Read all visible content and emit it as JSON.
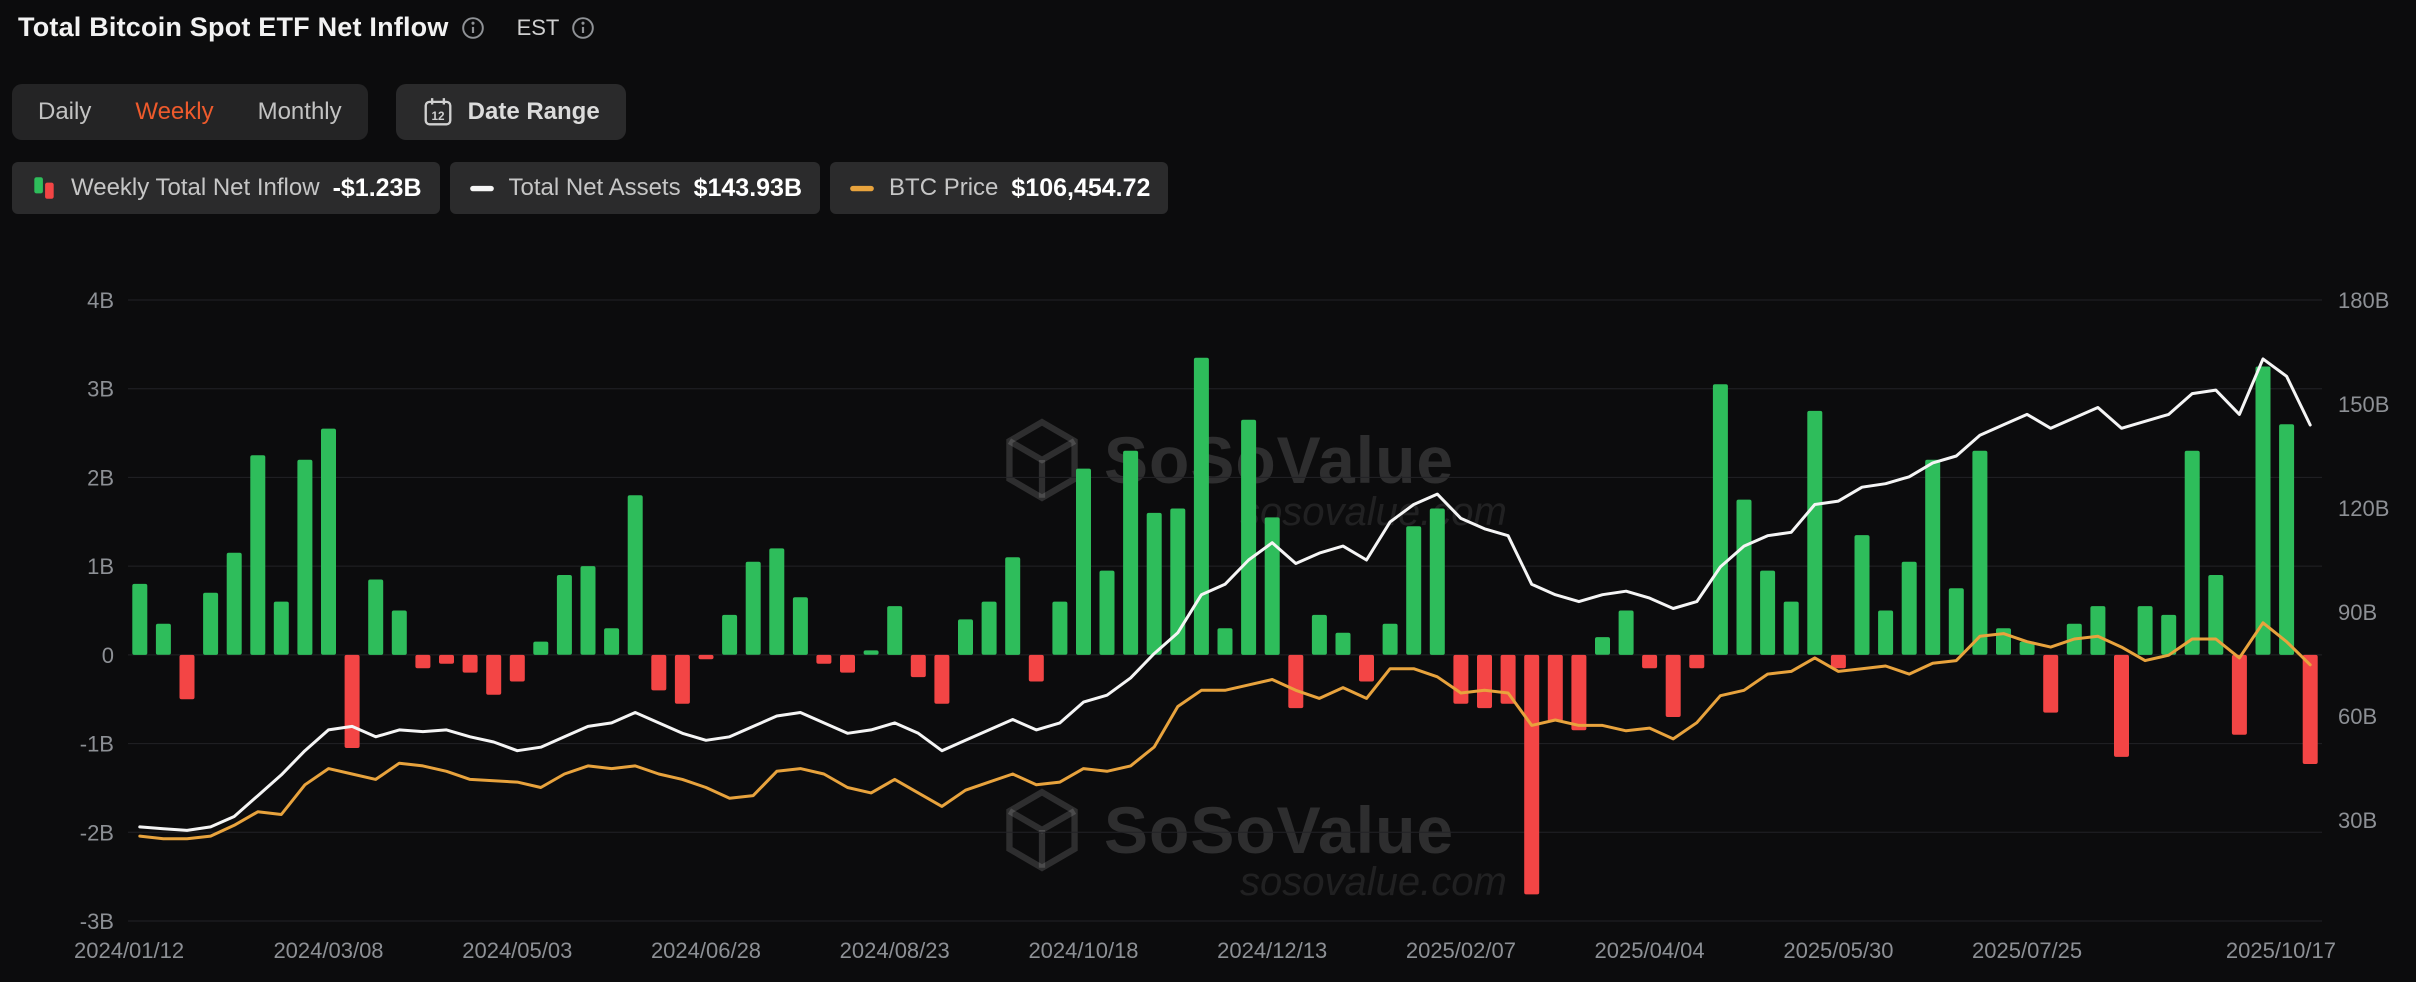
{
  "header": {
    "title": "Total Bitcoin Spot ETF Net Inflow",
    "timezone": "EST"
  },
  "controls": {
    "tabs": [
      {
        "label": "Daily",
        "active": false
      },
      {
        "label": "Weekly",
        "active": true
      },
      {
        "label": "Monthly",
        "active": false
      }
    ],
    "date_range_label": "Date Range"
  },
  "legend": [
    {
      "name": "Weekly Total Net Inflow",
      "value": "-$1.23B"
    },
    {
      "name": "Total Net Assets",
      "value": "$143.93B"
    },
    {
      "name": "BTC Price",
      "value": "$106,454.72"
    }
  ],
  "watermark": {
    "text": "SoSoValue",
    "domain": "sosovalue.com"
  },
  "colors": {
    "green": "#2ebd5b",
    "red": "#f34545",
    "white_line": "#f5f5f5",
    "orange_line": "#e8a33d",
    "accent": "#ee5a2c",
    "grid": "#222226",
    "axis_text": "#8d9095"
  },
  "chart_data": {
    "type": "bar",
    "title": "Total Bitcoin Spot ETF Net Inflow",
    "weeks": 93,
    "x_labels": [
      {
        "index": 0,
        "label": "2024/01/12"
      },
      {
        "index": 8,
        "label": "2024/03/08"
      },
      {
        "index": 16,
        "label": "2024/05/03"
      },
      {
        "index": 24,
        "label": "2024/06/28"
      },
      {
        "index": 32,
        "label": "2024/08/23"
      },
      {
        "index": 40,
        "label": "2024/10/18"
      },
      {
        "index": 48,
        "label": "2024/12/13"
      },
      {
        "index": 56,
        "label": "2025/02/07"
      },
      {
        "index": 64,
        "label": "2025/04/04"
      },
      {
        "index": 72,
        "label": "2025/05/30"
      },
      {
        "index": 80,
        "label": "2025/07/25"
      },
      {
        "index": 92,
        "label": "2025/10/17"
      }
    ],
    "left_axis": {
      "ticks": [
        "4B",
        "3B",
        "2B",
        "1B",
        "0",
        "-1B",
        "-2B",
        "-3B"
      ],
      "tick_values": [
        4,
        3,
        2,
        1,
        0,
        -1,
        -2,
        -3
      ],
      "unit": "B USD"
    },
    "right_axis": {
      "ticks": [
        "180B",
        "150B",
        "120B",
        "90B",
        "60B",
        "30B"
      ],
      "tick_values": [
        180,
        150,
        120,
        90,
        60,
        30
      ],
      "unit": "B USD"
    },
    "series": [
      {
        "name": "Weekly Total Net Inflow",
        "type": "bar",
        "unit": "B USD",
        "axis": "left",
        "values": [
          0.8,
          0.35,
          -0.5,
          0.7,
          1.15,
          2.25,
          0.6,
          2.2,
          2.55,
          -1.05,
          0.85,
          0.5,
          -0.15,
          -0.1,
          -0.2,
          -0.45,
          -0.3,
          0.15,
          0.9,
          1.0,
          0.3,
          1.8,
          -0.4,
          -0.55,
          -0.05,
          0.45,
          1.05,
          1.2,
          0.65,
          -0.1,
          -0.2,
          0.05,
          0.55,
          -0.25,
          -0.55,
          0.4,
          0.6,
          1.1,
          -0.3,
          0.6,
          2.1,
          0.95,
          2.3,
          1.6,
          1.65,
          3.35,
          0.3,
          2.65,
          1.55,
          -0.6,
          0.45,
          0.25,
          -0.3,
          0.35,
          1.45,
          1.65,
          -0.55,
          -0.6,
          -0.55,
          -2.7,
          -0.75,
          -0.85,
          0.2,
          0.5,
          -0.15,
          -0.7,
          -0.15,
          3.05,
          1.75,
          0.95,
          0.6,
          2.75,
          -0.15,
          1.35,
          0.5,
          1.05,
          2.2,
          0.75,
          2.3,
          0.3,
          0.15,
          -0.65,
          0.35,
          0.55,
          -1.15,
          0.55,
          0.45,
          2.3,
          0.9,
          -0.9,
          3.25,
          2.6,
          -1.23
        ]
      },
      {
        "name": "Total Net Assets",
        "type": "line",
        "unit": "B USD",
        "axis": "right",
        "values": [
          28,
          27.5,
          27,
          28,
          31,
          37,
          43,
          50,
          56,
          57,
          54,
          56,
          55.5,
          56,
          54,
          52.5,
          50,
          51,
          54,
          57,
          58,
          61,
          58,
          55,
          53,
          54,
          57,
          60,
          61,
          58,
          55,
          56,
          58,
          55,
          50,
          53,
          56,
          59,
          56,
          58,
          64,
          66,
          71,
          78,
          84,
          95,
          98,
          105,
          110,
          104,
          107,
          109,
          105,
          116,
          121,
          124,
          117,
          114,
          112,
          98,
          95,
          93,
          95,
          96,
          94,
          91,
          93,
          103,
          109,
          112,
          113,
          121,
          122,
          126,
          127,
          129,
          133,
          135,
          141,
          144,
          147,
          143,
          146,
          149,
          143,
          145,
          147,
          153,
          154,
          147,
          163,
          158,
          143.93
        ]
      },
      {
        "name": "BTC Price",
        "type": "line",
        "unit": "K USD",
        "axis": "hidden",
        "values": [
          43,
          42,
          42,
          43,
          47,
          52,
          51,
          62,
          68,
          66,
          64,
          70,
          69,
          67,
          64,
          63.5,
          63,
          61,
          66,
          69,
          68,
          69,
          66,
          64,
          61,
          57,
          58,
          67,
          68,
          66,
          61,
          59,
          64,
          59,
          54,
          60,
          63,
          66,
          62,
          63,
          68,
          67,
          69,
          76,
          91,
          97,
          97,
          99,
          101,
          97,
          94,
          98,
          94,
          105,
          105,
          102,
          96,
          97,
          96,
          84,
          86,
          84,
          84,
          82,
          83,
          79,
          85,
          95,
          97,
          103,
          104,
          109,
          104,
          105,
          106,
          103,
          107,
          108,
          117,
          118,
          115,
          113,
          116,
          117,
          113,
          108,
          110,
          116,
          116,
          109,
          122,
          115,
          106.45
        ]
      }
    ]
  }
}
